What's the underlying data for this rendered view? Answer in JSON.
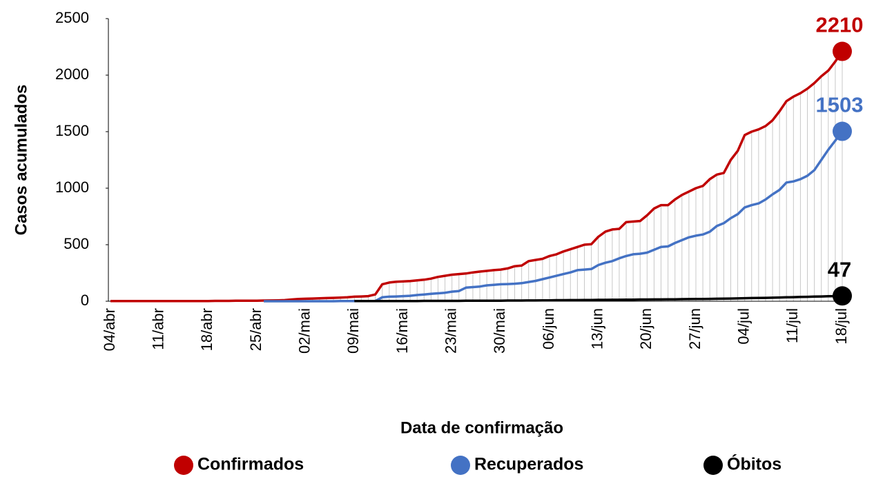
{
  "chart_data": {
    "type": "line",
    "x_label": "Data de confirmação",
    "y_label": "Casos acumulados",
    "categories": [
      "04/abr",
      null,
      null,
      null,
      null,
      null,
      null,
      "11/abr",
      null,
      null,
      null,
      null,
      null,
      null,
      "18/abr",
      null,
      null,
      null,
      null,
      null,
      null,
      "25/abr",
      null,
      null,
      null,
      null,
      null,
      null,
      "02/mai",
      null,
      null,
      null,
      null,
      null,
      null,
      "09/mai",
      null,
      null,
      null,
      null,
      null,
      null,
      "16/mai",
      null,
      null,
      null,
      null,
      null,
      null,
      "23/mai",
      null,
      null,
      null,
      null,
      null,
      null,
      "30/mai",
      null,
      null,
      null,
      null,
      null,
      null,
      "06/jun",
      null,
      null,
      null,
      null,
      null,
      null,
      "13/jun",
      null,
      null,
      null,
      null,
      null,
      null,
      "20/jun",
      null,
      null,
      null,
      null,
      null,
      null,
      "27/jun",
      null,
      null,
      null,
      null,
      null,
      null,
      "04/jul",
      null,
      null,
      null,
      null,
      null,
      null,
      "11/jul",
      null,
      null,
      null,
      null,
      null,
      null,
      "18/jul"
    ],
    "series": [
      {
        "name": "Confirmados",
        "color": "#c00000",
        "values": [
          1,
          1,
          1,
          1,
          1,
          1,
          1,
          1,
          1,
          1,
          1,
          2,
          2,
          2,
          2,
          3,
          3,
          3,
          4,
          4,
          4,
          5,
          6,
          7,
          8,
          10,
          15,
          20,
          22,
          24,
          26,
          28,
          30,
          32,
          35,
          40,
          42,
          45,
          60,
          150,
          165,
          172,
          175,
          178,
          185,
          190,
          200,
          215,
          225,
          235,
          240,
          245,
          255,
          262,
          268,
          275,
          280,
          290,
          310,
          315,
          355,
          365,
          375,
          400,
          415,
          440,
          460,
          480,
          500,
          505,
          570,
          615,
          635,
          640,
          700,
          705,
          710,
          760,
          820,
          850,
          850,
          900,
          940,
          970,
          1000,
          1020,
          1080,
          1120,
          1135,
          1250,
          1330,
          1470,
          1500,
          1520,
          1550,
          1600,
          1680,
          1770,
          1810,
          1840,
          1880,
          1930,
          1990,
          2040,
          2120,
          2210
        ]
      },
      {
        "name": "Recuperados",
        "color": "#4472c4",
        "values": [
          null,
          null,
          null,
          null,
          null,
          null,
          null,
          null,
          null,
          null,
          null,
          null,
          null,
          null,
          null,
          null,
          null,
          null,
          null,
          null,
          null,
          null,
          0,
          0,
          0,
          0,
          0,
          0,
          0,
          0,
          0,
          0,
          0,
          1,
          1,
          1,
          1,
          2,
          2,
          35,
          40,
          42,
          45,
          48,
          55,
          60,
          65,
          70,
          75,
          85,
          90,
          120,
          125,
          130,
          140,
          145,
          150,
          152,
          155,
          160,
          170,
          180,
          195,
          210,
          225,
          240,
          255,
          275,
          280,
          285,
          320,
          340,
          355,
          380,
          400,
          415,
          420,
          430,
          455,
          480,
          485,
          515,
          540,
          565,
          580,
          590,
          615,
          665,
          690,
          735,
          770,
          830,
          850,
          865,
          900,
          945,
          985,
          1050,
          1060,
          1080,
          1110,
          1160,
          1250,
          1340,
          1420,
          1503
        ]
      },
      {
        "name": "Óbitos",
        "color": "#000000",
        "values": [
          null,
          null,
          null,
          null,
          null,
          null,
          null,
          null,
          null,
          null,
          null,
          null,
          null,
          null,
          null,
          null,
          null,
          null,
          null,
          null,
          null,
          null,
          null,
          null,
          null,
          null,
          null,
          null,
          null,
          null,
          null,
          null,
          null,
          null,
          null,
          1,
          1,
          1,
          1,
          2,
          2,
          2,
          2,
          2,
          2,
          3,
          3,
          3,
          3,
          3,
          3,
          4,
          4,
          4,
          5,
          5,
          5,
          6,
          6,
          6,
          7,
          7,
          8,
          8,
          9,
          9,
          10,
          10,
          11,
          11,
          12,
          12,
          13,
          13,
          14,
          14,
          15,
          15,
          16,
          16,
          17,
          17,
          18,
          19,
          20,
          20,
          21,
          22,
          23,
          24,
          25,
          27,
          28,
          29,
          30,
          31,
          33,
          35,
          36,
          38,
          39,
          41,
          42,
          44,
          45,
          47
        ]
      }
    ],
    "ylim": [
      0,
      2500
    ],
    "yticks": [
      0,
      500,
      1000,
      1500,
      2000,
      2500
    ],
    "grid": false,
    "drop_lines": true,
    "legend": "bottom"
  }
}
